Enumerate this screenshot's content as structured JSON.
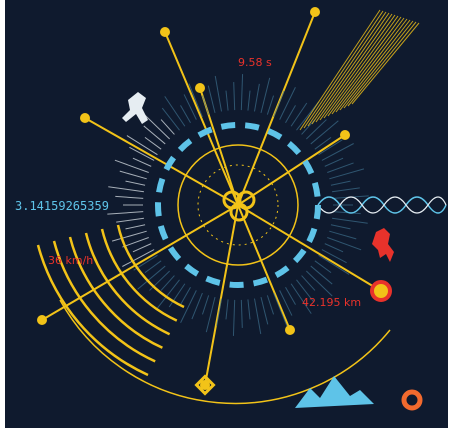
{
  "labels": {
    "time": "9.58 s",
    "pi": "3.14159265359",
    "speed": "36 km/h",
    "distance": "42.195 km"
  }
}
